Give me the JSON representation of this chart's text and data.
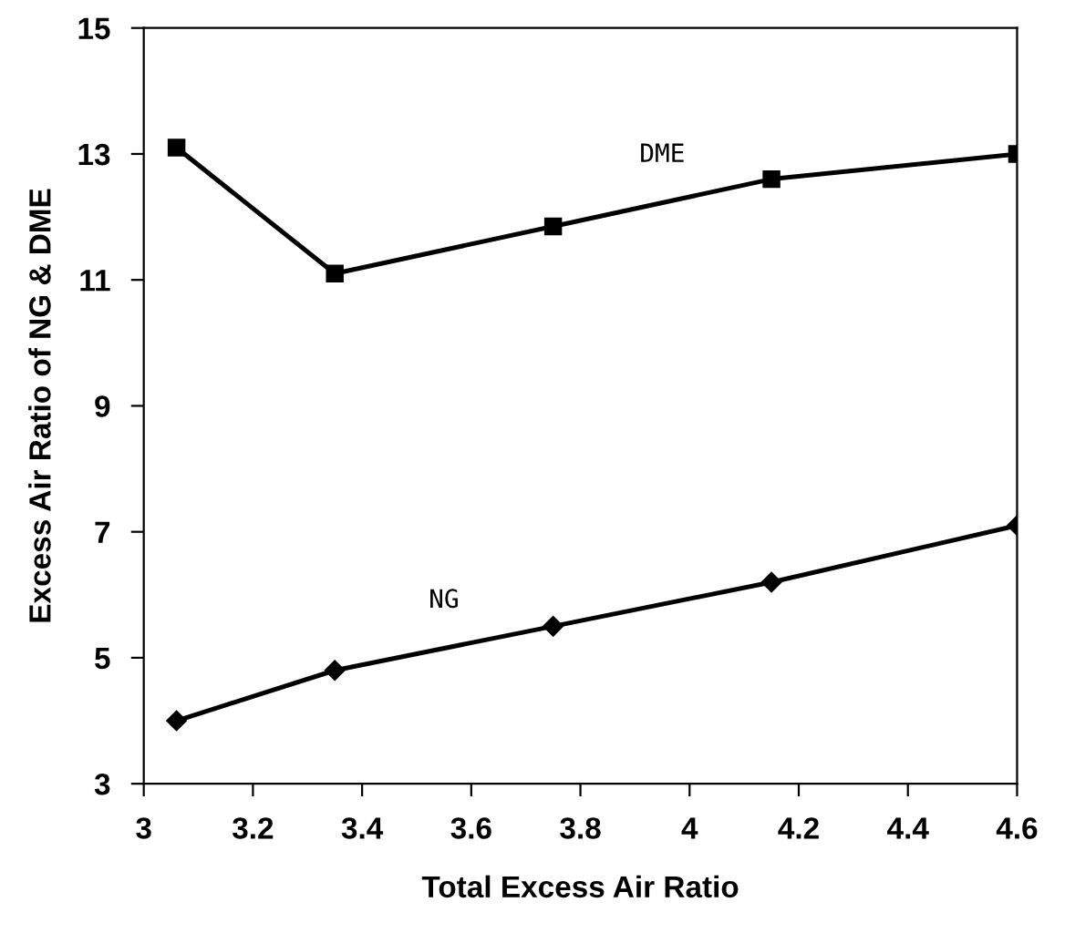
{
  "chart_data": {
    "type": "line",
    "xlabel": "Total Excess Air Ratio",
    "ylabel": "Excess Air Ratio of NG & DME",
    "xlim": [
      3,
      4.6
    ],
    "xticks": [
      3,
      3.2,
      3.4,
      3.6,
      3.8,
      4,
      4.2,
      4.4,
      4.6
    ],
    "ylim": [
      3,
      15
    ],
    "yticks": [
      3,
      5,
      7,
      9,
      11,
      13,
      15
    ],
    "grid": false,
    "legend": false,
    "series": [
      {
        "name": "DME",
        "color": "#000000",
        "marker": "square",
        "x": [
          3.06,
          3.35,
          3.75,
          4.15,
          4.6
        ],
        "values": [
          13.1,
          11.1,
          11.85,
          12.6,
          13.0
        ]
      },
      {
        "name": "NG",
        "color": "#000000",
        "marker": "diamond",
        "x": [
          3.06,
          3.35,
          3.75,
          4.15,
          4.6
        ],
        "values": [
          4.0,
          4.8,
          5.5,
          6.2,
          7.1
        ]
      }
    ]
  }
}
